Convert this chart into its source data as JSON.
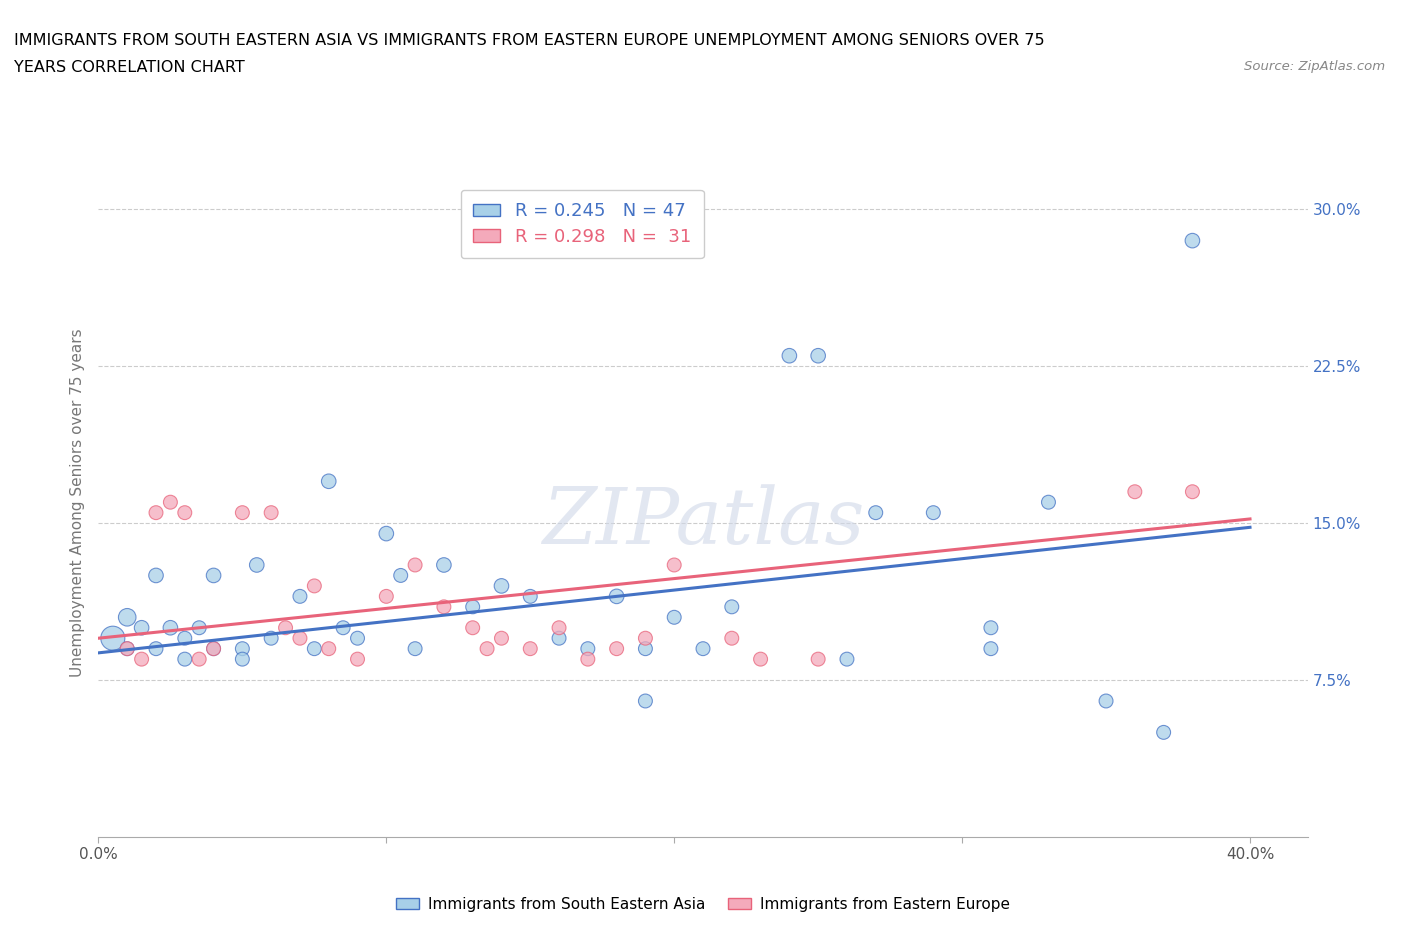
{
  "title_line1": "IMMIGRANTS FROM SOUTH EASTERN ASIA VS IMMIGRANTS FROM EASTERN EUROPE UNEMPLOYMENT AMONG SENIORS OVER 75",
  "title_line2": "YEARS CORRELATION CHART",
  "source": "Source: ZipAtlas.com",
  "ylabel": "Unemployment Among Seniors over 75 years",
  "xlim": [
    0.0,
    0.42
  ],
  "ylim": [
    0.0,
    0.32
  ],
  "xticks": [
    0.0,
    0.1,
    0.2,
    0.3,
    0.4
  ],
  "xticklabels": [
    "0.0%",
    "",
    "",
    "",
    "40.0%"
  ],
  "yticks": [
    0.075,
    0.15,
    0.225,
    0.3
  ],
  "yticklabels": [
    "7.5%",
    "15.0%",
    "22.5%",
    "30.0%"
  ],
  "legend_r1": "R = 0.245   N = 47",
  "legend_r2": "R = 0.298   N =  31",
  "color_blue": "#A8D0E8",
  "color_pink": "#F4AABB",
  "line_color_blue": "#4472C4",
  "line_color_pink": "#E8637A",
  "ytick_color": "#4472C4",
  "watermark": "ZIPatlas",
  "blue_scatter_x": [
    0.005,
    0.01,
    0.01,
    0.015,
    0.02,
    0.02,
    0.025,
    0.03,
    0.03,
    0.035,
    0.04,
    0.04,
    0.05,
    0.05,
    0.055,
    0.06,
    0.07,
    0.075,
    0.08,
    0.085,
    0.09,
    0.1,
    0.105,
    0.11,
    0.12,
    0.13,
    0.14,
    0.15,
    0.16,
    0.17,
    0.18,
    0.19,
    0.2,
    0.21,
    0.22,
    0.24,
    0.25,
    0.27,
    0.29,
    0.31,
    0.33,
    0.35,
    0.37,
    0.38,
    0.31,
    0.26,
    0.19
  ],
  "blue_scatter_y": [
    0.095,
    0.105,
    0.09,
    0.1,
    0.125,
    0.09,
    0.1,
    0.095,
    0.085,
    0.1,
    0.125,
    0.09,
    0.09,
    0.085,
    0.13,
    0.095,
    0.115,
    0.09,
    0.17,
    0.1,
    0.095,
    0.145,
    0.125,
    0.09,
    0.13,
    0.11,
    0.12,
    0.115,
    0.095,
    0.09,
    0.115,
    0.09,
    0.105,
    0.09,
    0.11,
    0.23,
    0.23,
    0.155,
    0.155,
    0.09,
    0.16,
    0.065,
    0.05,
    0.285,
    0.1,
    0.085,
    0.065
  ],
  "blue_scatter_size": [
    300,
    160,
    100,
    110,
    110,
    100,
    110,
    100,
    100,
    100,
    110,
    100,
    100,
    100,
    110,
    100,
    100,
    100,
    110,
    100,
    100,
    110,
    100,
    100,
    110,
    100,
    110,
    100,
    100,
    100,
    110,
    100,
    100,
    100,
    100,
    110,
    110,
    100,
    100,
    100,
    100,
    100,
    100,
    110,
    100,
    100,
    100
  ],
  "pink_scatter_x": [
    0.01,
    0.015,
    0.02,
    0.025,
    0.03,
    0.035,
    0.04,
    0.05,
    0.06,
    0.065,
    0.07,
    0.075,
    0.08,
    0.09,
    0.1,
    0.11,
    0.12,
    0.13,
    0.135,
    0.14,
    0.15,
    0.16,
    0.17,
    0.18,
    0.19,
    0.2,
    0.22,
    0.23,
    0.25,
    0.36,
    0.38
  ],
  "pink_scatter_y": [
    0.09,
    0.085,
    0.155,
    0.16,
    0.155,
    0.085,
    0.09,
    0.155,
    0.155,
    0.1,
    0.095,
    0.12,
    0.09,
    0.085,
    0.115,
    0.13,
    0.11,
    0.1,
    0.09,
    0.095,
    0.09,
    0.1,
    0.085,
    0.09,
    0.095,
    0.13,
    0.095,
    0.085,
    0.085,
    0.165,
    0.165
  ],
  "pink_scatter_size": [
    100,
    100,
    100,
    100,
    100,
    100,
    100,
    100,
    100,
    100,
    100,
    100,
    100,
    100,
    100,
    100,
    100,
    100,
    100,
    100,
    100,
    100,
    100,
    100,
    100,
    100,
    100,
    100,
    100,
    100,
    100
  ],
  "blue_line_x0": 0.0,
  "blue_line_y0": 0.088,
  "blue_line_x1": 0.4,
  "blue_line_y1": 0.148,
  "pink_line_x0": 0.0,
  "pink_line_y0": 0.095,
  "pink_line_x1": 0.4,
  "pink_line_y1": 0.152
}
